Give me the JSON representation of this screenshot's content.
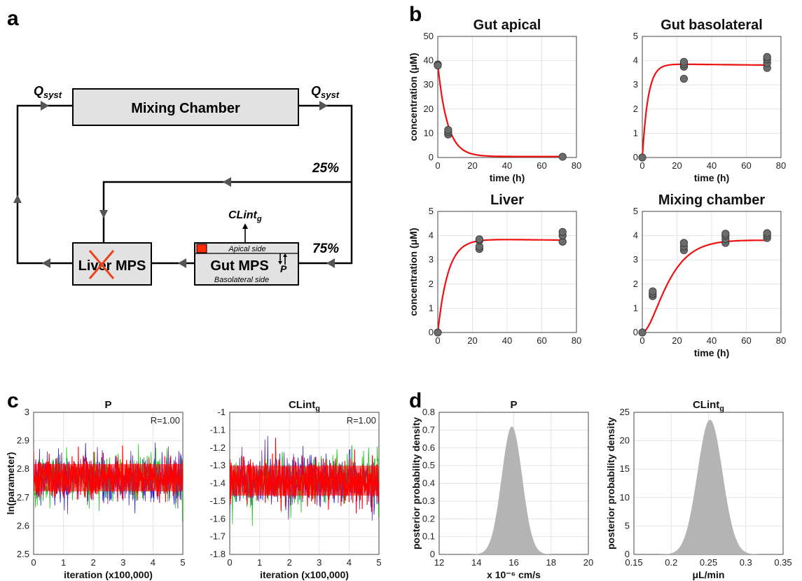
{
  "panel_labels": {
    "a": "a",
    "b": "b",
    "c": "c",
    "d": "d"
  },
  "diagram": {
    "mixing_chamber": "Mixing Chamber",
    "q_syst_left": "Q",
    "q_syst_left_sub": "syst",
    "q_syst_right": "Q",
    "q_syst_right_sub": "syst",
    "split_top": "25%",
    "split_bottom": "75%",
    "liver_mps": "Liver MPS",
    "gut_mps": "Gut MPS",
    "apical_side": "Apical side",
    "basolateral_side": "Basolateral side",
    "clint": "CLint",
    "clint_sub": "g",
    "perm": "P",
    "colors": {
      "box_fill": "#e2e2e2",
      "cross": "#e8431c",
      "compound": "#ff2a00"
    }
  },
  "chart_data": [
    {
      "id": "gut-apical",
      "type": "scatter+line",
      "title": "Gut apical",
      "xlabel": "time (h)",
      "ylabel": "concentration (μM)",
      "xlim": [
        0,
        80
      ],
      "ylim": [
        0,
        50
      ],
      "xticks": [
        "0",
        "20",
        "40",
        "60",
        "80"
      ],
      "yticks": [
        "0",
        "10",
        "20",
        "30",
        "40",
        "50"
      ],
      "points": [
        [
          0,
          38.4
        ],
        [
          0,
          38.0
        ],
        [
          6,
          9.5
        ],
        [
          6,
          10.5
        ],
        [
          6,
          11.4
        ],
        [
          72,
          0.3
        ]
      ],
      "fit": {
        "model": "decay",
        "c0": 38.4,
        "k": 0.18,
        "c_inf": 0.4,
        "t_max": 72
      },
      "colors": {
        "fit": "#ee1111",
        "points": "#6b6b6b"
      }
    },
    {
      "id": "gut-basolateral",
      "type": "scatter+line",
      "title": "Gut basolateral",
      "xlabel": "time (h)",
      "ylabel": "",
      "xlim": [
        0,
        80
      ],
      "ylim": [
        0,
        5
      ],
      "xticks": [
        "0",
        "20",
        "40",
        "60",
        "80"
      ],
      "yticks": [
        "0",
        "1",
        "2",
        "3",
        "4",
        "5"
      ],
      "points": [
        [
          0,
          0
        ],
        [
          24,
          3.25
        ],
        [
          24,
          3.75
        ],
        [
          24,
          3.85
        ],
        [
          24,
          3.95
        ],
        [
          72,
          3.7
        ],
        [
          72,
          3.9
        ],
        [
          72,
          4.05
        ],
        [
          72,
          4.15
        ]
      ],
      "fit": {
        "model": "rise",
        "a": 3.87,
        "k": 0.3,
        "decay": 0.0002,
        "t_max": 72
      },
      "colors": {
        "fit": "#ee1111",
        "points": "#6b6b6b"
      }
    },
    {
      "id": "liver",
      "type": "scatter+line",
      "title": "Liver",
      "xlabel": "",
      "ylabel": "concentration (μM)",
      "xlim": [
        0,
        80
      ],
      "ylim": [
        0,
        5
      ],
      "xticks": [
        "0",
        "20",
        "40",
        "60",
        "80"
      ],
      "yticks": [
        "0",
        "1",
        "2",
        "3",
        "4",
        "5"
      ],
      "points": [
        [
          0,
          0
        ],
        [
          24,
          3.45
        ],
        [
          24,
          3.55
        ],
        [
          24,
          3.8
        ],
        [
          24,
          3.85
        ],
        [
          72,
          3.75
        ],
        [
          72,
          4.0
        ],
        [
          72,
          4.15
        ]
      ],
      "fit": {
        "model": "rise",
        "a": 3.87,
        "k": 0.17,
        "decay": 0.0002,
        "t_max": 72
      },
      "colors": {
        "fit": "#ee1111",
        "points": "#6b6b6b"
      }
    },
    {
      "id": "mixing-chamber",
      "type": "scatter+line",
      "title": "Mixing chamber",
      "xlabel": "time (h)",
      "ylabel": "",
      "xlim": [
        0,
        80
      ],
      "ylim": [
        0,
        5
      ],
      "xticks": [
        "0",
        "20",
        "40",
        "60",
        "80"
      ],
      "yticks": [
        "0",
        "1",
        "2",
        "3",
        "4",
        "5"
      ],
      "points": [
        [
          0,
          0
        ],
        [
          6,
          1.5
        ],
        [
          6,
          1.6
        ],
        [
          6,
          1.7
        ],
        [
          24,
          3.4
        ],
        [
          24,
          3.55
        ],
        [
          24,
          3.7
        ],
        [
          48,
          3.7
        ],
        [
          48,
          3.85
        ],
        [
          48,
          4.0
        ],
        [
          48,
          4.08
        ],
        [
          72,
          3.9
        ],
        [
          72,
          4.0
        ],
        [
          72,
          4.1
        ]
      ],
      "fit": {
        "model": "rise-lag",
        "a": 3.87,
        "k": 0.12,
        "decay": 0.0002,
        "t_max": 72
      },
      "colors": {
        "fit": "#ee1111",
        "points": "#6b6b6b"
      }
    },
    {
      "id": "trace-p",
      "type": "trace",
      "title": "P",
      "title_sub": "",
      "annotation": "R=1.00",
      "xlabel": "iteration (x100,000)",
      "ylabel": "ln(parameter)",
      "xlim": [
        0,
        5
      ],
      "ylim": [
        2.5,
        3
      ],
      "xticks": [
        "0",
        "1",
        "2",
        "3",
        "4",
        "5"
      ],
      "yticks": [
        "2.5",
        "2.6",
        "2.7",
        "2.8",
        "2.9",
        "3"
      ],
      "mean": 2.77,
      "sd": 0.04,
      "chains": [
        {
          "color": "#1f1fd6"
        },
        {
          "color": "#19c419"
        },
        {
          "color": "#6b2aa0"
        },
        {
          "color": "#ff0000"
        }
      ]
    },
    {
      "id": "trace-clint",
      "type": "trace",
      "title": "CLint",
      "title_sub": "g",
      "annotation": "R=1.00",
      "xlabel": "iteration (x100,000)",
      "ylabel": "",
      "xlim": [
        0,
        5
      ],
      "ylim": [
        -1.8,
        -1
      ],
      "xticks": [
        "0",
        "1",
        "2",
        "3",
        "4",
        "5"
      ],
      "yticks": [
        "-1.8",
        "-1.7",
        "-1.6",
        "-1.5",
        "-1.4",
        "-1.3",
        "-1.2",
        "-1.1",
        "-1"
      ],
      "mean": -1.385,
      "sd": 0.07,
      "chains": [
        {
          "color": "#1f1fd6"
        },
        {
          "color": "#19c419"
        },
        {
          "color": "#6b2aa0"
        },
        {
          "color": "#ff0000"
        }
      ]
    },
    {
      "id": "posterior-p",
      "type": "area",
      "title": "P",
      "title_sub": "",
      "xlabel": "x 10⁻⁶ cm/s",
      "ylabel": "posterior probability density",
      "xlim": [
        12,
        20
      ],
      "ylim": [
        0,
        0.8
      ],
      "xticks": [
        "12",
        "14",
        "16",
        "18",
        "20"
      ],
      "yticks": [
        "0",
        "0.1",
        "0.2",
        "0.3",
        "0.4",
        "0.5",
        "0.6",
        "0.7",
        "0.8"
      ],
      "peak_x": 15.9,
      "peak_y": 0.72,
      "sd": 0.55,
      "color": "#b4b4b4"
    },
    {
      "id": "posterior-clint",
      "type": "area",
      "title": "CLint",
      "title_sub": "g",
      "xlabel": "μL/min",
      "ylabel": "posterior probability density",
      "xlim": [
        0.15,
        0.35
      ],
      "ylim": [
        0,
        25
      ],
      "xticks": [
        "0.15",
        "0.2",
        "0.25",
        "0.3",
        "0.35"
      ],
      "yticks": [
        "0",
        "5",
        "10",
        "15",
        "20",
        "25"
      ],
      "peak_x": 0.252,
      "peak_y": 23.7,
      "sd": 0.0168,
      "color": "#b4b4b4"
    }
  ]
}
